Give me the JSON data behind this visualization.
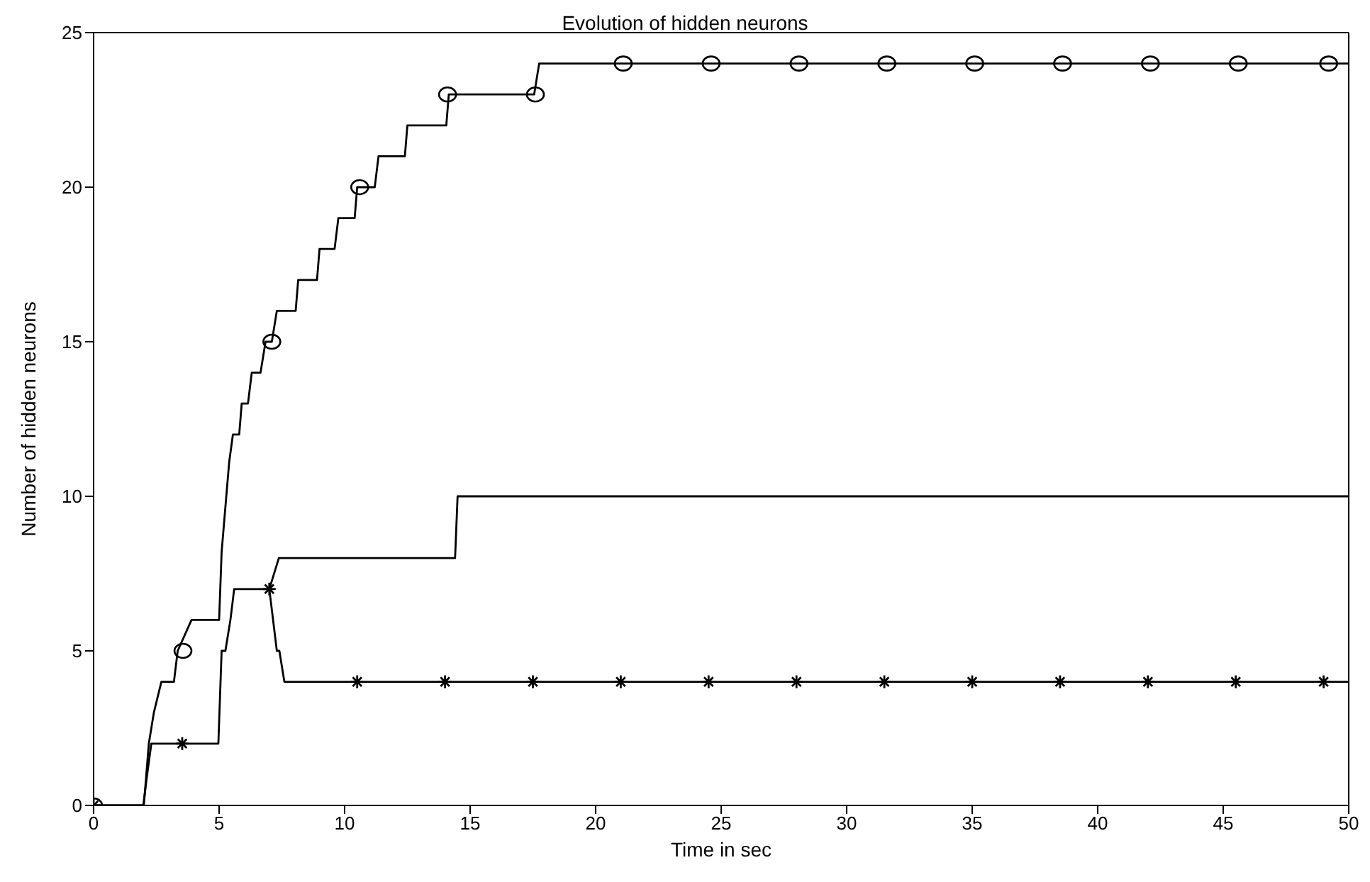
{
  "chart_data": {
    "type": "line",
    "title": "Evolution of hidden neurons",
    "xlabel": "Time in sec",
    "ylabel": "Number of hidden neurons",
    "xlim": [
      0,
      50
    ],
    "xticks": [
      0,
      5,
      10,
      15,
      20,
      25,
      30,
      35,
      40,
      45,
      50
    ],
    "ylim": [
      0,
      25
    ],
    "yticks": [
      0,
      5,
      10,
      15,
      20,
      25
    ],
    "line_style": "solid",
    "series": [
      {
        "color": "#000000",
        "marker": "none",
        "x": [
          0,
          2.0,
          2.2,
          2.4,
          2.7,
          3.2,
          3.35,
          3.9,
          5.0,
          5.1,
          5.4,
          5.55,
          5.8,
          5.9,
          6.15,
          6.3,
          6.65,
          6.85,
          7.1,
          7.3,
          8.05,
          8.15,
          8.9,
          9.0,
          9.6,
          9.75,
          10.4,
          10.5,
          11.2,
          11.35,
          12.4,
          12.5,
          14.05,
          14.15,
          17.55,
          17.75,
          50
        ],
        "values": [
          0,
          0,
          2,
          3,
          4,
          4,
          5,
          6,
          6,
          8.2,
          11.1,
          12,
          12,
          13,
          13,
          14,
          14,
          15,
          15,
          16,
          16,
          17,
          17,
          18,
          18,
          19,
          19,
          20,
          20,
          21,
          21,
          22,
          22,
          23,
          23,
          24,
          24
        ]
      },
      {
        "type": "scatter",
        "color": "#000000",
        "marker": "circle",
        "x": [
          0,
          3.56,
          7.1,
          10.6,
          14.1,
          17.6,
          21.1,
          24.6,
          28.1,
          31.6,
          35.1,
          38.6,
          42.1,
          45.6,
          49.2
        ],
        "values": [
          0,
          5,
          15,
          20,
          23,
          23,
          24,
          24,
          24,
          24,
          24,
          24,
          24,
          24,
          24
        ]
      },
      {
        "color": "#000000",
        "marker": "none",
        "x": [
          0,
          1.98,
          2.15,
          2.3,
          4.97,
          5.1,
          5.25,
          5.45,
          5.6,
          7.0,
          7.3,
          7.4,
          7.6,
          50
        ],
        "values": [
          0,
          0,
          1.1,
          2,
          2,
          5,
          5,
          6,
          7,
          7,
          5,
          5,
          4,
          4
        ]
      },
      {
        "type": "scatter",
        "color": "#000000",
        "marker": "cross",
        "x": [
          0,
          3.53,
          7.0,
          10.5,
          14.0,
          17.5,
          21,
          24.5,
          28,
          31.5,
          35,
          38.5,
          42,
          45.5,
          49
        ],
        "values": [
          0,
          2,
          7,
          4,
          4,
          4,
          4,
          4,
          4,
          4,
          4,
          4,
          4,
          4,
          4
        ]
      },
      {
        "color": "#000000",
        "marker": "none",
        "x": [
          7.0,
          7.38,
          14.4,
          14.5,
          50
        ],
        "values": [
          7,
          8,
          8,
          10,
          10
        ]
      }
    ]
  }
}
